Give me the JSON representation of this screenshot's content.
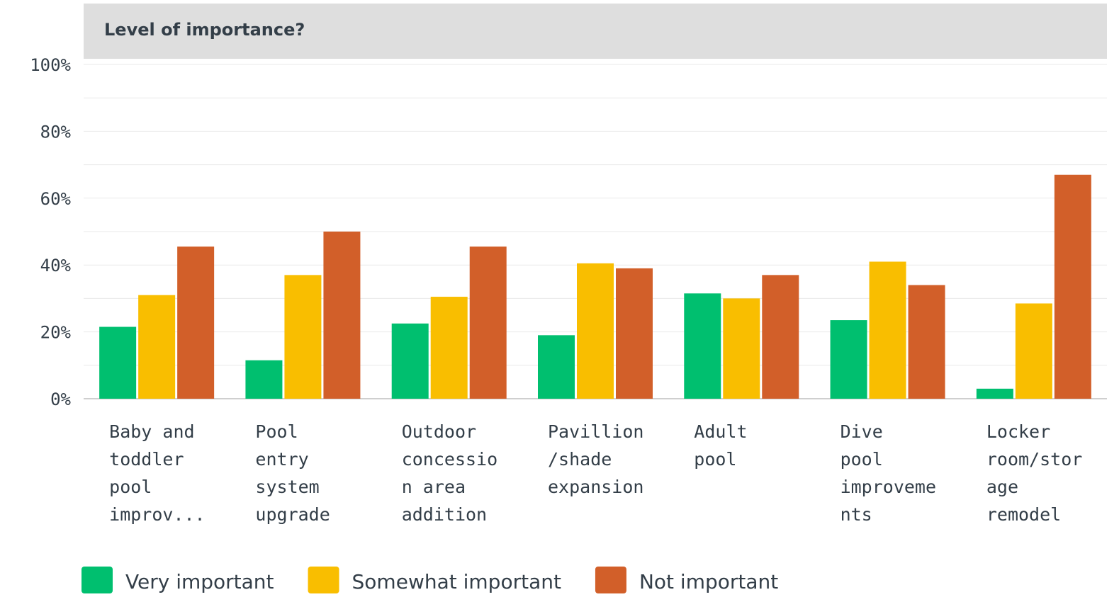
{
  "chart_data": {
    "type": "bar",
    "title": "Level of importance?",
    "categories": [
      "Baby and toddler pool improv...",
      "Pool entry system upgrade",
      "Outdoor concession area addition",
      "Pavillion /shade expansion",
      "Adult pool",
      "Dive pool improvements",
      "Locker room/storage remodel"
    ],
    "category_lines": [
      [
        "Baby and",
        "toddler",
        "pool",
        "improv..."
      ],
      [
        "Pool",
        "entry",
        "system",
        "upgrade"
      ],
      [
        "Outdoor",
        "concessio",
        "n area",
        "addition"
      ],
      [
        "Pavillion",
        "/shade",
        "expansion"
      ],
      [
        "Adult",
        "pool"
      ],
      [
        "Dive",
        "pool",
        "improveme",
        "nts"
      ],
      [
        "Locker",
        "room/stor",
        "age",
        "remodel"
      ]
    ],
    "series": [
      {
        "name": "Very important",
        "color": "#00bf6f",
        "values": [
          21.5,
          11.5,
          22.5,
          19,
          31.5,
          23.5,
          3
        ]
      },
      {
        "name": "Somewhat important",
        "color": "#f9be00",
        "values": [
          31,
          37,
          30.5,
          40.5,
          30,
          41,
          28.5
        ]
      },
      {
        "name": "Not important",
        "color": "#d25f29",
        "values": [
          45.5,
          50,
          45.5,
          39,
          37,
          34,
          67
        ]
      }
    ],
    "y_ticks": [
      "0%",
      "20%",
      "40%",
      "60%",
      "80%",
      "100%"
    ],
    "ylim": [
      0,
      100
    ],
    "grid": true,
    "legend_position": "bottom-left",
    "colors": {
      "title_band": "#dedede",
      "grid": "#e9e9e9",
      "text": "#333e48"
    }
  }
}
